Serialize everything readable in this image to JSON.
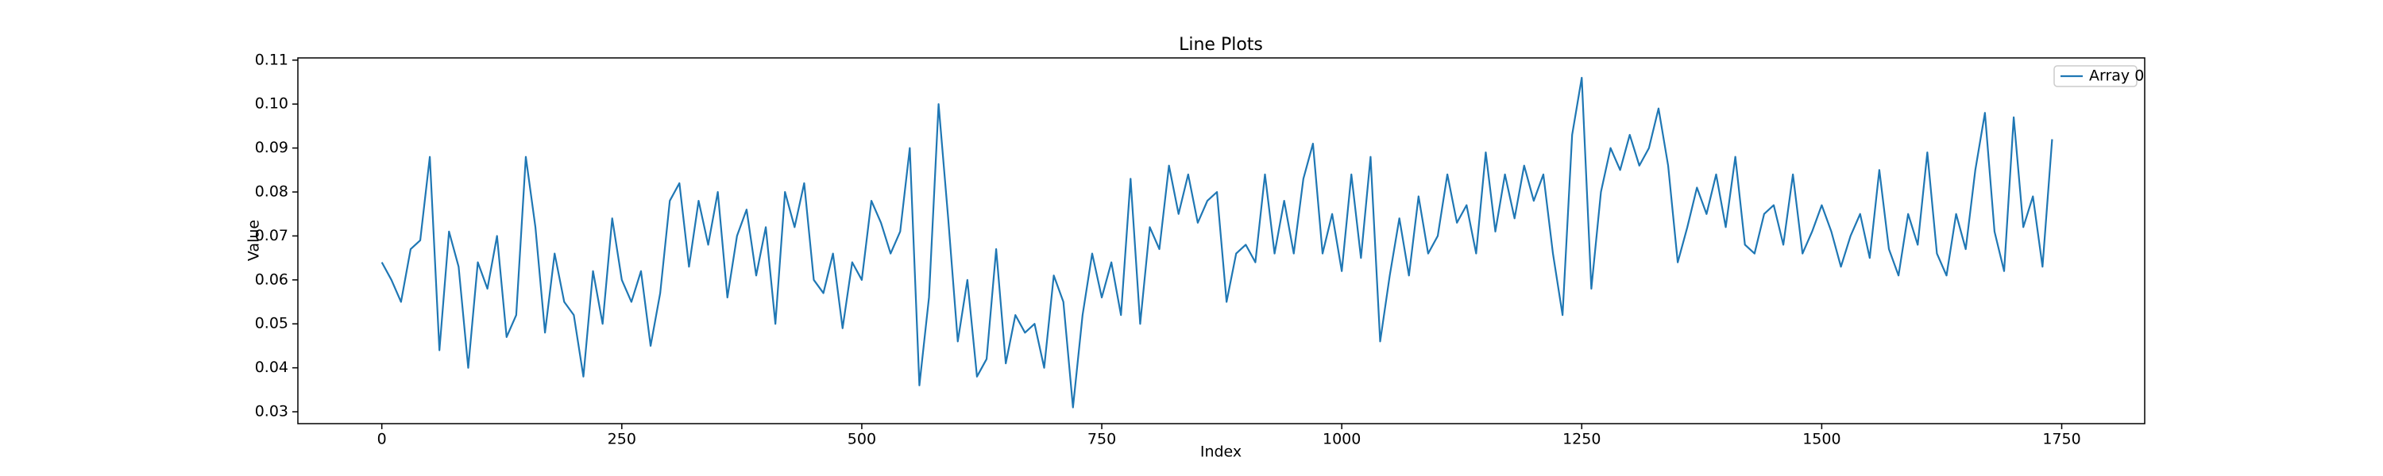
{
  "chart_data": {
    "type": "line",
    "title": "Line Plots",
    "x_label": "Index",
    "y_label": "Value",
    "x": [
      0,
      10,
      20,
      30,
      40,
      50,
      60,
      70,
      80,
      90,
      100,
      110,
      120,
      130,
      140,
      150,
      160,
      170,
      180,
      190,
      200,
      210,
      220,
      230,
      240,
      250,
      260,
      270,
      280,
      290,
      300,
      310,
      320,
      330,
      340,
      350,
      360,
      370,
      380,
      390,
      400,
      410,
      420,
      430,
      440,
      450,
      460,
      470,
      480,
      490,
      500,
      510,
      520,
      530,
      540,
      550,
      560,
      570,
      580,
      590,
      600,
      610,
      620,
      630,
      640,
      650,
      660,
      670,
      680,
      690,
      700,
      710,
      720,
      730,
      740,
      750,
      760,
      770,
      780,
      790,
      800,
      810,
      820,
      830,
      840,
      850,
      860,
      870,
      880,
      890,
      900,
      910,
      920,
      930,
      940,
      950,
      960,
      970,
      980,
      990,
      1000,
      1010,
      1020,
      1030,
      1040,
      1050,
      1060,
      1070,
      1080,
      1090,
      1100,
      1110,
      1120,
      1130,
      1140,
      1150,
      1160,
      1170,
      1180,
      1190,
      1200,
      1210,
      1220,
      1230,
      1240,
      1250,
      1260,
      1270,
      1280,
      1290,
      1300,
      1310,
      1320,
      1330,
      1340,
      1350,
      1360,
      1370,
      1380,
      1390,
      1400,
      1410,
      1420,
      1430,
      1440,
      1450,
      1460,
      1470,
      1480,
      1490,
      1500,
      1510,
      1520,
      1530,
      1540,
      1550,
      1560,
      1570,
      1580,
      1590,
      1600,
      1610,
      1620,
      1630,
      1640,
      1650,
      1660,
      1670,
      1680,
      1690,
      1700,
      1710,
      1720,
      1730,
      1740
    ],
    "series": [
      {
        "name": "Array 0",
        "color": "#1f77b4",
        "values": [
          0.064,
          0.06,
          0.055,
          0.067,
          0.069,
          0.088,
          0.044,
          0.071,
          0.063,
          0.04,
          0.064,
          0.058,
          0.07,
          0.047,
          0.052,
          0.088,
          0.072,
          0.048,
          0.066,
          0.055,
          0.052,
          0.038,
          0.062,
          0.05,
          0.074,
          0.06,
          0.055,
          0.062,
          0.045,
          0.057,
          0.078,
          0.082,
          0.063,
          0.078,
          0.068,
          0.08,
          0.056,
          0.07,
          0.076,
          0.061,
          0.072,
          0.05,
          0.08,
          0.072,
          0.082,
          0.06,
          0.057,
          0.066,
          0.049,
          0.064,
          0.06,
          0.078,
          0.073,
          0.066,
          0.071,
          0.09,
          0.036,
          0.056,
          0.1,
          0.074,
          0.046,
          0.06,
          0.038,
          0.042,
          0.067,
          0.041,
          0.052,
          0.048,
          0.05,
          0.04,
          0.061,
          0.055,
          0.031,
          0.052,
          0.066,
          0.056,
          0.064,
          0.052,
          0.083,
          0.05,
          0.072,
          0.067,
          0.086,
          0.075,
          0.084,
          0.073,
          0.078,
          0.08,
          0.055,
          0.066,
          0.068,
          0.064,
          0.084,
          0.066,
          0.078,
          0.066,
          0.083,
          0.091,
          0.066,
          0.075,
          0.062,
          0.084,
          0.065,
          0.088,
          0.046,
          0.061,
          0.074,
          0.061,
          0.079,
          0.066,
          0.07,
          0.084,
          0.073,
          0.077,
          0.066,
          0.089,
          0.071,
          0.084,
          0.074,
          0.086,
          0.078,
          0.084,
          0.066,
          0.052,
          0.093,
          0.106,
          0.058,
          0.08,
          0.09,
          0.085,
          0.093,
          0.086,
          0.09,
          0.099,
          0.086,
          0.064,
          0.072,
          0.081,
          0.075,
          0.084,
          0.072,
          0.088,
          0.068,
          0.066,
          0.075,
          0.077,
          0.068,
          0.084,
          0.066,
          0.071,
          0.077,
          0.071,
          0.063,
          0.07,
          0.075,
          0.065,
          0.085,
          0.067,
          0.061,
          0.075,
          0.068,
          0.089,
          0.066,
          0.061,
          0.075,
          0.067,
          0.085,
          0.098,
          0.071,
          0.062,
          0.097,
          0.072,
          0.079,
          0.063,
          0.092
        ]
      }
    ],
    "xlim": [
      -87.45,
      1836.45
    ],
    "ylim": [
      0.0273,
      0.1105
    ],
    "xticks": [
      0,
      250,
      500,
      750,
      1000,
      1250,
      1500,
      1750
    ],
    "yticks": [
      0.03,
      0.04,
      0.05,
      0.06,
      0.07,
      0.08,
      0.09,
      {
        "value": 0.1,
        "label": "0.10"
      },
      0.11
    ],
    "grid": false,
    "legend": "upper right"
  }
}
